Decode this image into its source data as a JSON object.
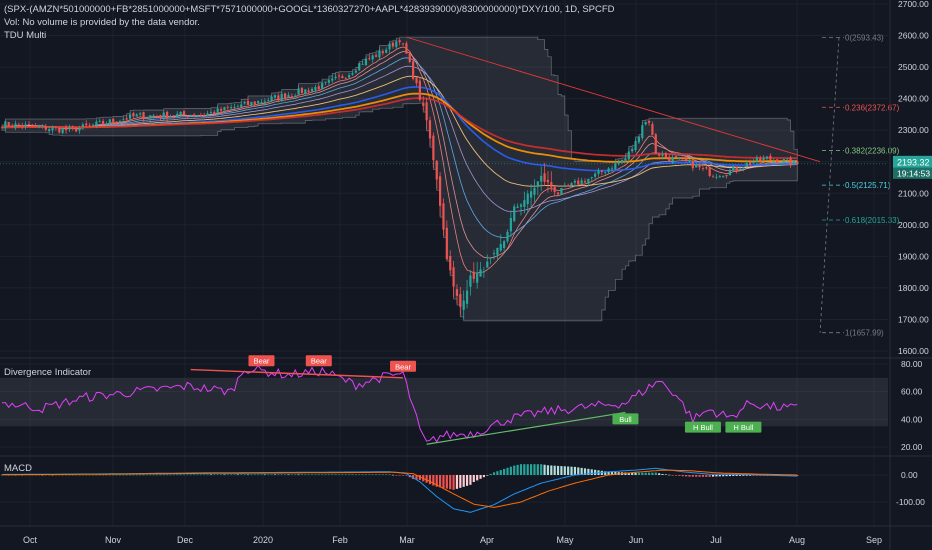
{
  "header": {
    "symbol": "(SPX-(AMZN*501000000+FB*2851000000+MSFT*7571000000+GOOGL*1360327270+AAPL*4283939000)/8300000000)*DXY/100, 1D, SPCFD",
    "volume_note": "Vol: No volume is provided by the data vendor.",
    "indicator": "TDU Multi"
  },
  "price_badge": {
    "price": "2193.32",
    "countdown": "19:14:53"
  },
  "colors": {
    "background": "#131722",
    "grid": "#1e222d",
    "up": "#26a69a",
    "down": "#ef5350",
    "ribbon_red": "#d32f2f",
    "ribbon_orange": "#ff9800",
    "ribbon_blue": "#2962ff",
    "trendline": "#e53935",
    "osc": "#e040fb",
    "bull_line": "#66bb6a",
    "macd": "#2196f3",
    "signal": "#ff6d00"
  },
  "chart_data": [
    {
      "type": "candlestick",
      "pane": "price",
      "x_tick_labels": [
        "Oct",
        "Nov",
        "Dec",
        "2020",
        "Feb",
        "Mar",
        "Apr",
        "May",
        "Jun",
        "Jul",
        "Aug",
        "Sep"
      ],
      "y_tick_labels": [
        "2700.00",
        "2600.00",
        "2500.00",
        "2400.00",
        "2300.00",
        "2200.00",
        "2100.00",
        "2000.00",
        "1900.00",
        "1800.00",
        "1700.00",
        "1600.00"
      ],
      "ylim": [
        1600,
        2700
      ],
      "anchors": [
        [
          0,
          2320
        ],
        [
          20,
          2300
        ],
        [
          40,
          2345
        ],
        [
          60,
          2350
        ],
        [
          80,
          2400
        ],
        [
          95,
          2440
        ],
        [
          103,
          2480
        ],
        [
          106,
          2510
        ],
        [
          113,
          2550
        ],
        [
          118,
          2590
        ],
        [
          120,
          2540
        ],
        [
          123,
          2440
        ],
        [
          126,
          2330
        ],
        [
          129,
          2150
        ],
        [
          132,
          1900
        ],
        [
          134,
          1800
        ],
        [
          136,
          1740
        ],
        [
          139,
          1830
        ],
        [
          142,
          1850
        ],
        [
          146,
          1900
        ],
        [
          149,
          1950
        ],
        [
          152,
          2050
        ],
        [
          156,
          2090
        ],
        [
          160,
          2150
        ],
        [
          165,
          2100
        ],
        [
          170,
          2130
        ],
        [
          175,
          2150
        ],
        [
          180,
          2180
        ],
        [
          185,
          2210
        ],
        [
          188,
          2260
        ],
        [
          190,
          2320
        ],
        [
          192,
          2330
        ],
        [
          194,
          2230
        ],
        [
          198,
          2210
        ],
        [
          203,
          2200
        ],
        [
          207,
          2180
        ],
        [
          211,
          2160
        ],
        [
          215,
          2165
        ],
        [
          219,
          2185
        ],
        [
          223,
          2200
        ],
        [
          227,
          2210
        ],
        [
          233,
          2200
        ],
        [
          236,
          2193.32
        ]
      ],
      "fibonacci": [
        {
          "label": "0(2593.43)",
          "value": 2593.43
        },
        {
          "label": "0.236(2372.67)",
          "value": 2372.67
        },
        {
          "label": "0.382(2236.09)",
          "value": 2236.09
        },
        {
          "label": "0.5(2125.71)",
          "value": 2125.71
        },
        {
          "label": "0.618(2015.33)",
          "value": 2015.33
        },
        {
          "label": "1(1657.99)",
          "value": 1657.99
        }
      ],
      "trendline": [
        [
          120,
          2595
        ],
        [
          241,
          2200
        ]
      ]
    },
    {
      "type": "line",
      "pane": "divergence",
      "title": "Divergence Indicator",
      "y_tick_labels": [
        "80.00",
        "60.00",
        "40.00",
        "20.00"
      ],
      "ylim": [
        15,
        85
      ],
      "band": [
        35,
        70
      ],
      "anchors": [
        [
          0,
          52
        ],
        [
          12,
          48
        ],
        [
          25,
          56
        ],
        [
          40,
          60
        ],
        [
          55,
          64
        ],
        [
          68,
          60
        ],
        [
          72,
          77
        ],
        [
          85,
          72
        ],
        [
          95,
          75
        ],
        [
          105,
          65
        ],
        [
          112,
          70
        ],
        [
          119,
          73
        ],
        [
          124,
          32
        ],
        [
          126,
          22
        ],
        [
          130,
          28
        ],
        [
          140,
          30
        ],
        [
          150,
          40
        ],
        [
          160,
          45
        ],
        [
          170,
          48
        ],
        [
          185,
          52
        ],
        [
          195,
          68
        ],
        [
          200,
          58
        ],
        [
          205,
          40
        ],
        [
          210,
          47
        ],
        [
          216,
          41
        ],
        [
          222,
          52
        ],
        [
          228,
          49
        ],
        [
          235,
          48
        ]
      ],
      "bear_line": [
        [
          56,
          76
        ],
        [
          119,
          70
        ]
      ],
      "bull_line": [
        [
          126,
          22
        ],
        [
          185,
          45
        ]
      ],
      "labels": [
        {
          "text": "Bear",
          "x": 77,
          "y": 82
        },
        {
          "text": "Bear",
          "x": 94,
          "y": 82
        },
        {
          "text": "Bear",
          "x": 119,
          "y": 78
        },
        {
          "text": "Bull",
          "x": 185,
          "y": 40
        },
        {
          "text": "H Bull",
          "x": 208,
          "y": 34
        },
        {
          "text": "H Bull",
          "x": 220,
          "y": 34
        }
      ]
    },
    {
      "type": "line",
      "pane": "macd",
      "title": "MACD",
      "y_tick_labels": [
        "0.00",
        "-100.00"
      ],
      "ylim": [
        -150,
        60
      ],
      "macd_anchors": [
        [
          0,
          2
        ],
        [
          30,
          4
        ],
        [
          60,
          8
        ],
        [
          90,
          10
        ],
        [
          115,
          12
        ],
        [
          120,
          5
        ],
        [
          124,
          -25
        ],
        [
          129,
          -80
        ],
        [
          134,
          -125
        ],
        [
          139,
          -138
        ],
        [
          146,
          -110
        ],
        [
          152,
          -70
        ],
        [
          160,
          -30
        ],
        [
          170,
          0
        ],
        [
          180,
          12
        ],
        [
          188,
          18
        ],
        [
          194,
          25
        ],
        [
          202,
          12
        ],
        [
          210,
          3
        ],
        [
          220,
          2
        ],
        [
          236,
          -4
        ]
      ],
      "signal_anchors": [
        [
          0,
          1
        ],
        [
          30,
          3
        ],
        [
          60,
          6
        ],
        [
          90,
          8
        ],
        [
          117,
          10
        ],
        [
          122,
          5
        ],
        [
          128,
          -30
        ],
        [
          134,
          -70
        ],
        [
          140,
          -108
        ],
        [
          146,
          -120
        ],
        [
          154,
          -100
        ],
        [
          162,
          -60
        ],
        [
          170,
          -30
        ],
        [
          180,
          0
        ],
        [
          188,
          10
        ],
        [
          196,
          18
        ],
        [
          204,
          16
        ],
        [
          212,
          8
        ],
        [
          222,
          4
        ],
        [
          236,
          0
        ]
      ]
    }
  ]
}
